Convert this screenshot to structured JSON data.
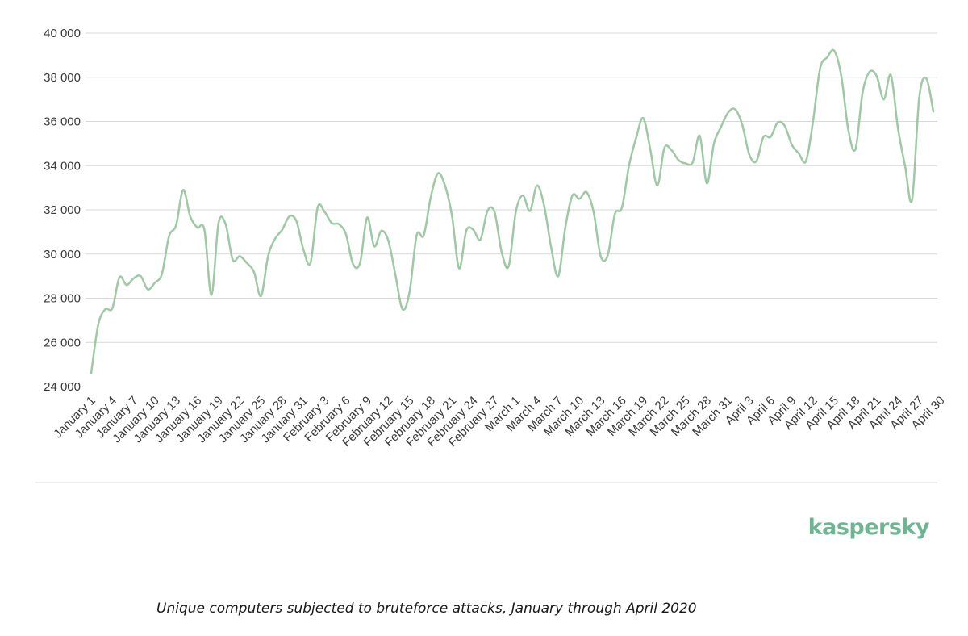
{
  "brand": {
    "name": "kaspersky",
    "color": "#6fb593"
  },
  "caption": "Unique computers subjected to bruteforce attacks, January through April 2020",
  "colors": {
    "line": "#9ec9a4",
    "grid": "#d9d9d9",
    "text": "#3a3a3a"
  },
  "chart_data": {
    "type": "line",
    "title": "",
    "xlabel": "",
    "ylabel": "",
    "ylim": [
      24000,
      40000
    ],
    "yticks": [
      "24 000",
      "26 000",
      "28 000",
      "30 000",
      "32 000",
      "34 000",
      "36 000",
      "38 000",
      "40 000"
    ],
    "ytick_values": [
      24000,
      26000,
      28000,
      30000,
      32000,
      34000,
      36000,
      38000,
      40000
    ],
    "x_labels": [
      "January 1",
      "January 4",
      "January 7",
      "January 10",
      "January 13",
      "January 16",
      "January 19",
      "January 22",
      "January 25",
      "January 28",
      "January 31",
      "February 3",
      "February 6",
      "February 9",
      "February 12",
      "February 15",
      "February 18",
      "February 21",
      "February 24",
      "February 27",
      "March 1",
      "March 4",
      "March 7",
      "March 10",
      "March 13",
      "March 16",
      "March 19",
      "March 22",
      "March 25",
      "March 28",
      "March 31",
      "April 3",
      "April 6",
      "April 9",
      "April 12",
      "April 15",
      "April 18",
      "April 21",
      "April 24",
      "April 27",
      "April 30"
    ],
    "grid": true,
    "legend": "none",
    "series": [
      {
        "values": [
          24600,
          26800,
          27500,
          27550,
          28950,
          28600,
          28900,
          29000,
          28400,
          28700,
          29100,
          30800,
          31300,
          32900,
          31700,
          31200,
          31100,
          28150,
          31400,
          31350,
          29750,
          29900,
          29600,
          29200,
          28100,
          29900,
          30700,
          31100,
          31700,
          31500,
          30200,
          29600,
          32100,
          31900,
          31400,
          31350,
          30900,
          29550,
          29600,
          31650,
          30350,
          31050,
          30600,
          29050,
          27500,
          28300,
          30850,
          30850,
          32600,
          33650,
          33100,
          31700,
          29350,
          31050,
          31100,
          30650,
          31950,
          31900,
          30100,
          29450,
          31900,
          32650,
          31950,
          33100,
          32200,
          30300,
          29000,
          31200,
          32650,
          32500,
          32800,
          31900,
          29900,
          29950,
          31800,
          32100,
          34000,
          35250,
          36150,
          34750,
          33100,
          34800,
          34700,
          34250,
          34100,
          34150,
          35350,
          33200,
          35000,
          35750,
          36400,
          36550,
          35850,
          34500,
          34200,
          35300,
          35300,
          35950,
          35800,
          34950,
          34550,
          34200,
          36000,
          38400,
          38900,
          39200,
          38050,
          35600,
          34750,
          37300,
          38250,
          38050,
          37000,
          38100,
          35700,
          34000,
          32450,
          37050,
          37950,
          36450
        ]
      }
    ]
  }
}
